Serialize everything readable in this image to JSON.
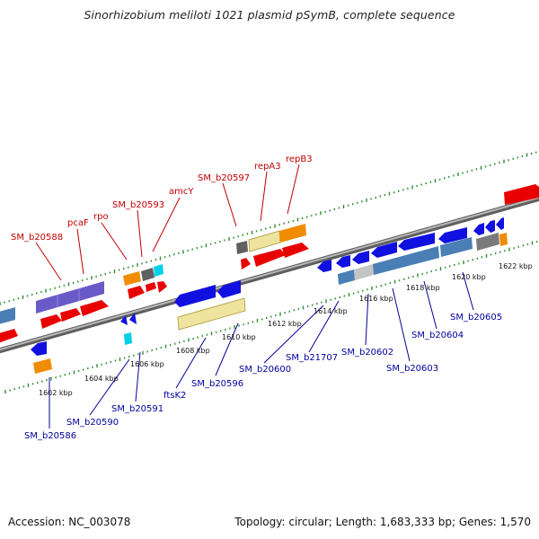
{
  "title": "Sinorhizobium meliloti 1021 plasmid pSymB, complete sequence",
  "footer": {
    "accession": "Accession: NC_003078",
    "summary": "Topology: circular; Length: 1,683,333 bp; Genes: 1,570"
  },
  "colors": {
    "backbone": "#8c8c8c",
    "tick": "#2e8b2e",
    "cds_red": "#e80000",
    "gene_blue": "#1010e0",
    "orange": "#f08c00",
    "yellow": "#eee4a0",
    "steel": "#4a7fb5",
    "purple": "#6a5ac8",
    "gray": "#606060",
    "cyan": "#00d0e8",
    "label_top": "#c00000",
    "label_bottom": "#00009c"
  },
  "tick_labels": [
    "1602 kbp",
    "1604 kbp",
    "1606 kbp",
    "1608 kbp",
    "1610 kbp",
    "1612 kbp",
    "1614 kbp",
    "1616 kbp",
    "1618 kbp",
    "1620 kbp",
    "1622 kbp"
  ],
  "top_labels": [
    "SM_b20588",
    "pcaF",
    "rpo",
    "SM_b20593",
    "amcY",
    "SM_b20597",
    "repA3",
    "repB3"
  ],
  "bottom_labels": [
    "SM_b20586",
    "SM_b20590",
    "SM_b20591",
    "ftsK2",
    "SM_b20596",
    "SM_b20600",
    "SM_b21707",
    "SM_b20602",
    "SM_b20603",
    "SM_b20604",
    "SM_b20605"
  ]
}
